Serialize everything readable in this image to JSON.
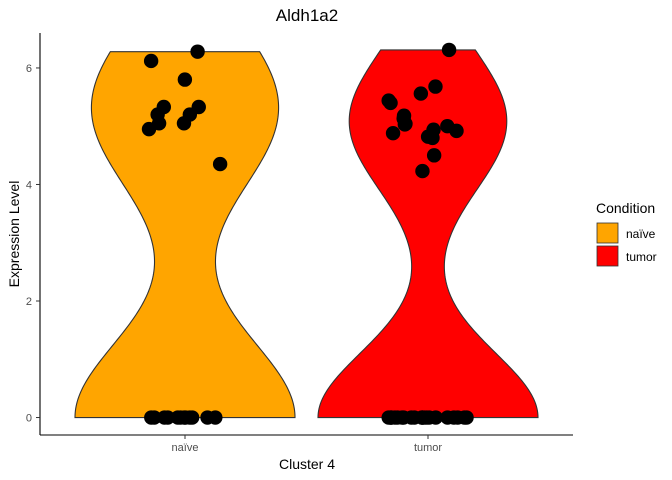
{
  "chart_data": {
    "type": "violin",
    "title": "Aldh1a2",
    "xlabel": "Cluster 4",
    "ylabel": "Expression Level",
    "categories": [
      "naïve",
      "tumor"
    ],
    "ylim": [
      -0.3,
      6.6
    ],
    "yticks": [
      0,
      2,
      4,
      6
    ],
    "grid": false,
    "legend": {
      "title": "Condition",
      "position": "right",
      "entries": [
        {
          "label": "naïve",
          "color": "#FFA500"
        },
        {
          "label": "tumor",
          "color": "#FF0000"
        }
      ]
    },
    "series": [
      {
        "name": "naïve",
        "color": "#FFA500",
        "max": 6.28,
        "zero_count": 12,
        "points_nonzero": [
          6.28,
          6.12,
          5.8,
          5.33,
          5.33,
          5.2,
          5.2,
          5.05,
          5.05,
          4.95,
          4.35
        ]
      },
      {
        "name": "tumor",
        "color": "#FF0000",
        "max": 6.31,
        "zero_count": 22,
        "points_nonzero": [
          6.31,
          5.68,
          5.56,
          5.44,
          5.4,
          5.18,
          5.13,
          5.04,
          5.03,
          5.0,
          4.94,
          4.92,
          4.88,
          4.82,
          4.8,
          4.5,
          4.23
        ]
      }
    ]
  }
}
